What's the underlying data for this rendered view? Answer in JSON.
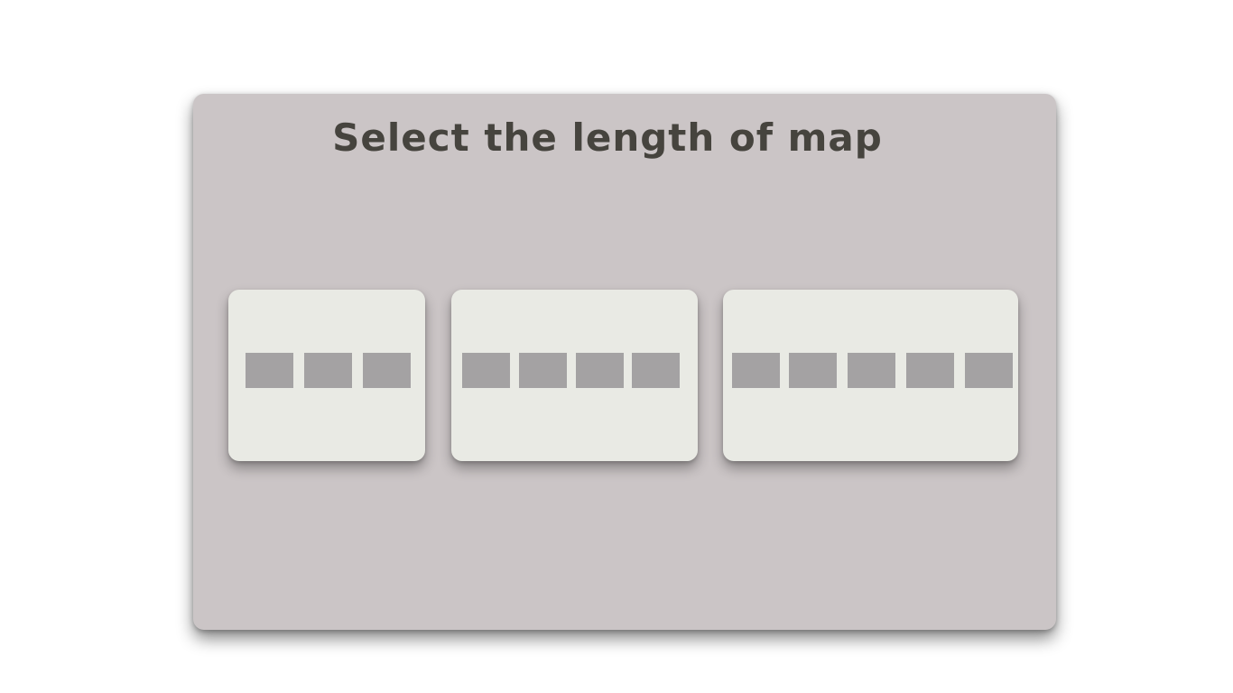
{
  "title": "Select the length of map",
  "options": [
    {
      "id": "length-3",
      "length": 3
    },
    {
      "id": "length-4",
      "length": 4
    },
    {
      "id": "length-5",
      "length": 5
    }
  ],
  "colors": {
    "page_background": "#ffffff",
    "panel_background": "#cbc5c6",
    "card_background": "#e9eae4",
    "block": "#a4a2a3",
    "title_text": "#46443e"
  }
}
